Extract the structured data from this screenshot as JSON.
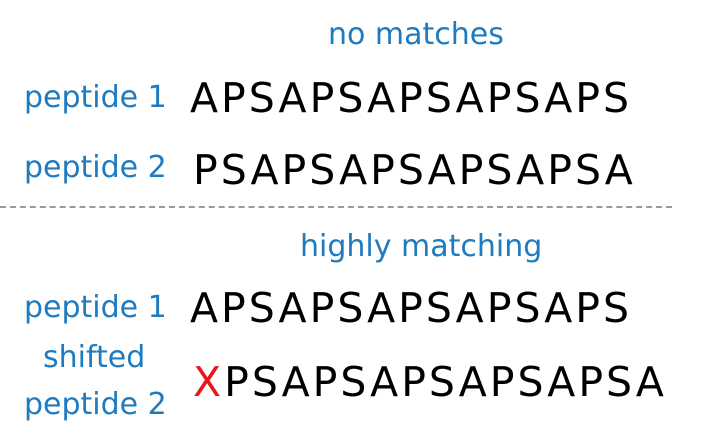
{
  "colors": {
    "label_blue": "#1F7BC0",
    "sequence_black": "#000000",
    "mismatch_red": "#E8161B",
    "divider_gray": "#9a9a9a"
  },
  "top_section": {
    "heading": "no matches",
    "row1": {
      "label": "peptide 1",
      "sequence": "APSAPSAPSAPSAPS"
    },
    "row2": {
      "label": "peptide 2",
      "sequence": "PSAPSAPSAPSAPSA"
    }
  },
  "bottom_section": {
    "heading": "highly matching",
    "row1": {
      "label": "peptide 1",
      "sequence": "APSAPSAPSAPSAPS"
    },
    "row2": {
      "label_line1": "shifted",
      "label_line2": "peptide 2",
      "prefix": "X",
      "sequence": "PSAPSAPSAPSAPSA"
    }
  }
}
